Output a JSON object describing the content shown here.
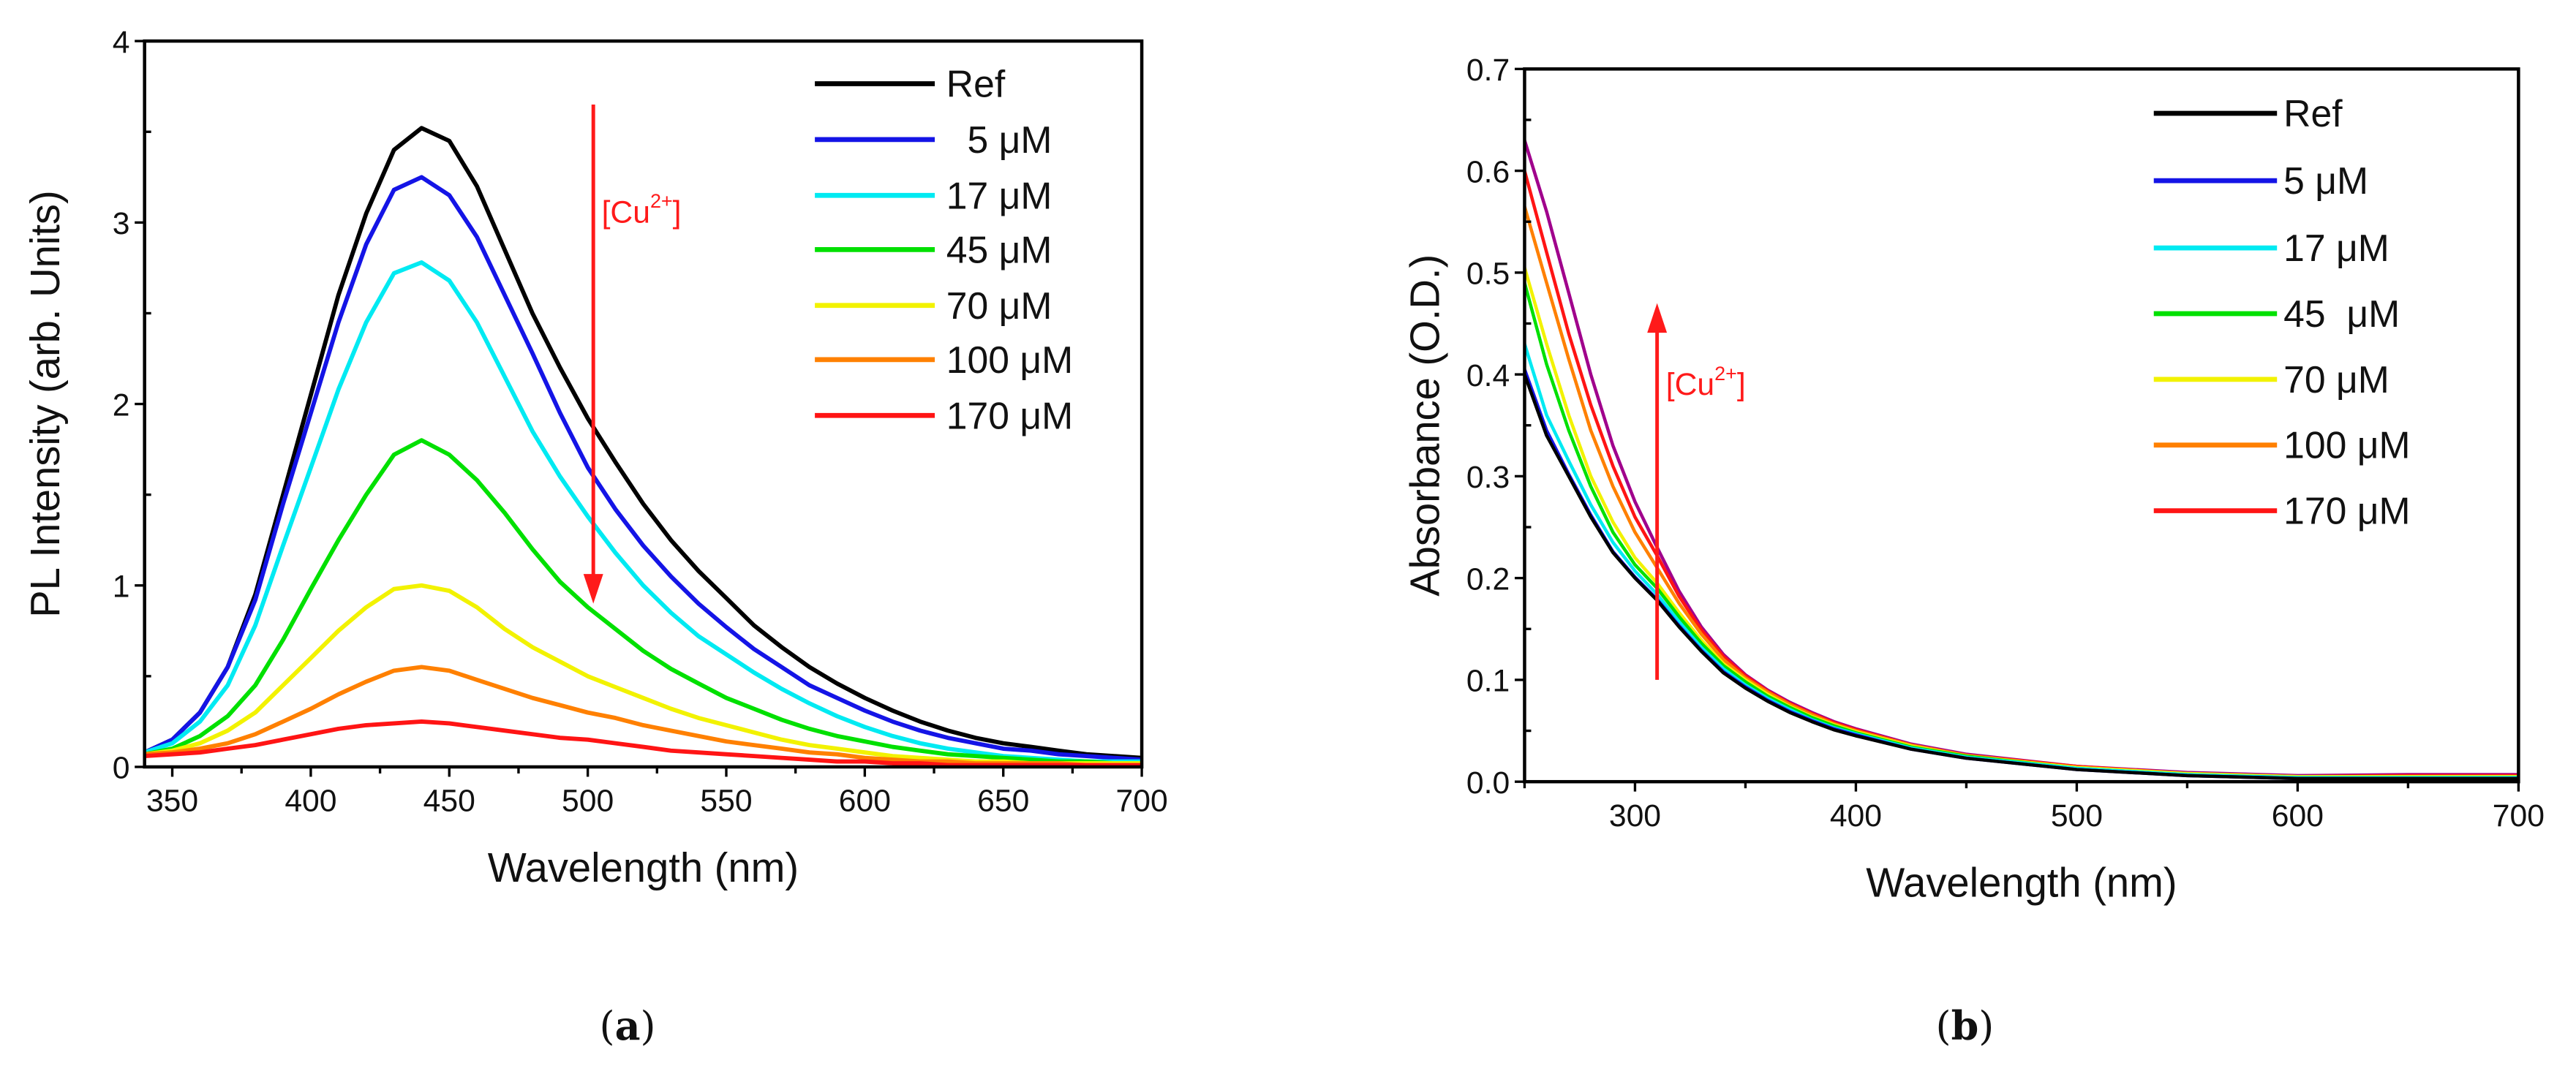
{
  "chart_data": [
    {
      "type": "line",
      "panel_label": "a",
      "xlabel": "Wavelength (nm)",
      "ylabel": "PL Intensity (arb. Units)",
      "xlim": [
        340,
        700
      ],
      "ylim": [
        0,
        4
      ],
      "xticks": [
        350,
        400,
        450,
        500,
        550,
        600,
        650,
        700
      ],
      "yticks": [
        0,
        1,
        2,
        3,
        4
      ],
      "xminor": 25,
      "yminor": 0.5,
      "grid": false,
      "legend_position": "top-right",
      "annotation": {
        "text": "[Cu",
        "sup": "2+",
        "close": "]",
        "arrow_direction": "down",
        "arrow_x": 502,
        "arrow_from": 3.65,
        "arrow_to": 0.9,
        "label_x": 505,
        "label_y": 3.0,
        "color": "#ff1a1a"
      },
      "x": [
        340,
        350,
        360,
        370,
        380,
        390,
        400,
        410,
        420,
        430,
        440,
        450,
        460,
        470,
        480,
        490,
        500,
        510,
        520,
        530,
        540,
        550,
        560,
        570,
        580,
        590,
        600,
        610,
        620,
        630,
        640,
        650,
        660,
        670,
        680,
        690,
        700
      ],
      "series": [
        {
          "name": "Ref",
          "color": "#000000",
          "values": [
            0.08,
            0.15,
            0.3,
            0.55,
            0.95,
            1.5,
            2.05,
            2.6,
            3.05,
            3.4,
            3.52,
            3.45,
            3.2,
            2.85,
            2.5,
            2.2,
            1.92,
            1.68,
            1.45,
            1.25,
            1.08,
            0.93,
            0.78,
            0.66,
            0.55,
            0.46,
            0.38,
            0.31,
            0.25,
            0.2,
            0.16,
            0.13,
            0.11,
            0.09,
            0.07,
            0.06,
            0.05
          ]
        },
        {
          "name": "  5 μM",
          "color": "#1414e6",
          "values": [
            0.08,
            0.15,
            0.3,
            0.55,
            0.92,
            1.45,
            1.95,
            2.45,
            2.88,
            3.18,
            3.25,
            3.15,
            2.92,
            2.6,
            2.28,
            1.95,
            1.65,
            1.42,
            1.22,
            1.05,
            0.9,
            0.77,
            0.65,
            0.55,
            0.45,
            0.38,
            0.31,
            0.25,
            0.2,
            0.16,
            0.13,
            0.1,
            0.09,
            0.07,
            0.06,
            0.05,
            0.04
          ]
        },
        {
          "name": "17 μM",
          "color": "#00eaf2",
          "values": [
            0.08,
            0.13,
            0.25,
            0.45,
            0.78,
            1.22,
            1.65,
            2.08,
            2.45,
            2.72,
            2.78,
            2.68,
            2.45,
            2.15,
            1.85,
            1.6,
            1.38,
            1.18,
            1.0,
            0.85,
            0.72,
            0.62,
            0.52,
            0.43,
            0.35,
            0.28,
            0.22,
            0.17,
            0.13,
            0.1,
            0.08,
            0.06,
            0.05,
            0.04,
            0.03,
            0.03,
            0.03
          ]
        },
        {
          "name": "45 μM",
          "color": "#00e000",
          "values": [
            0.07,
            0.1,
            0.17,
            0.28,
            0.45,
            0.7,
            0.98,
            1.25,
            1.5,
            1.72,
            1.8,
            1.72,
            1.58,
            1.4,
            1.2,
            1.02,
            0.88,
            0.76,
            0.64,
            0.54,
            0.46,
            0.38,
            0.32,
            0.26,
            0.21,
            0.17,
            0.14,
            0.11,
            0.09,
            0.07,
            0.06,
            0.05,
            0.04,
            0.03,
            0.03,
            0.02,
            0.02
          ]
        },
        {
          "name": "70 μM",
          "color": "#f2f200",
          "values": [
            0.07,
            0.09,
            0.13,
            0.2,
            0.3,
            0.45,
            0.6,
            0.75,
            0.88,
            0.98,
            1.0,
            0.97,
            0.88,
            0.76,
            0.66,
            0.58,
            0.5,
            0.44,
            0.38,
            0.32,
            0.27,
            0.23,
            0.19,
            0.15,
            0.12,
            0.1,
            0.08,
            0.06,
            0.05,
            0.04,
            0.03,
            0.03,
            0.02,
            0.02,
            0.02,
            0.02,
            0.02
          ]
        },
        {
          "name": "100 μM",
          "color": "#ff8000",
          "values": [
            0.07,
            0.08,
            0.1,
            0.13,
            0.18,
            0.25,
            0.32,
            0.4,
            0.47,
            0.53,
            0.55,
            0.53,
            0.48,
            0.43,
            0.38,
            0.34,
            0.3,
            0.27,
            0.23,
            0.2,
            0.17,
            0.14,
            0.12,
            0.1,
            0.08,
            0.07,
            0.05,
            0.04,
            0.03,
            0.03,
            0.02,
            0.02,
            0.02,
            0.02,
            0.01,
            0.01,
            0.01
          ]
        },
        {
          "name": "170 μM",
          "color": "#ff1414",
          "values": [
            0.06,
            0.07,
            0.08,
            0.1,
            0.12,
            0.15,
            0.18,
            0.21,
            0.23,
            0.24,
            0.25,
            0.24,
            0.22,
            0.2,
            0.18,
            0.16,
            0.15,
            0.13,
            0.11,
            0.09,
            0.08,
            0.07,
            0.06,
            0.05,
            0.04,
            0.03,
            0.03,
            0.02,
            0.02,
            0.01,
            0.01,
            0.01,
            0.01,
            0.01,
            0.01,
            0.01,
            0.01
          ]
        }
      ]
    },
    {
      "type": "line",
      "panel_label": "b",
      "xlabel": "Wavelength (nm)",
      "ylabel": "Absorbance (O.D.)",
      "xlim": [
        250,
        700
      ],
      "ylim": [
        0,
        0.7
      ],
      "xticks": [
        300,
        400,
        500,
        600,
        700
      ],
      "yticks": [
        0.0,
        0.1,
        0.2,
        0.3,
        0.4,
        0.5,
        0.6,
        0.7
      ],
      "xminor": 50,
      "yminor": 0.05,
      "grid": false,
      "legend_position": "top-right",
      "annotation": {
        "text": "[Cu",
        "sup": "2+",
        "close": "]",
        "arrow_direction": "up",
        "arrow_x": 310,
        "arrow_from": 0.1,
        "arrow_to": 0.47,
        "label_x": 314,
        "label_y": 0.38,
        "color": "#ff1a1a"
      },
      "x": [
        250,
        260,
        270,
        280,
        290,
        300,
        310,
        320,
        330,
        340,
        350,
        360,
        370,
        380,
        390,
        400,
        425,
        450,
        500,
        550,
        600,
        650,
        700
      ],
      "series": [
        {
          "name": "",
          "color": "#a0008c",
          "values": [
            0.63,
            0.56,
            0.48,
            0.4,
            0.33,
            0.275,
            0.23,
            0.187,
            0.152,
            0.125,
            0.105,
            0.09,
            0.078,
            0.068,
            0.059,
            0.052,
            0.037,
            0.027,
            0.015,
            0.009,
            0.006,
            0.007,
            0.007
          ]
        },
        {
          "name": "170 μM",
          "color": "#ff1414",
          "values": [
            0.6,
            0.52,
            0.44,
            0.37,
            0.31,
            0.26,
            0.222,
            0.182,
            0.149,
            0.123,
            0.104,
            0.089,
            0.077,
            0.067,
            0.058,
            0.051,
            0.036,
            0.026,
            0.015,
            0.008,
            0.005,
            0.006,
            0.006
          ]
        },
        {
          "name": "100 μM",
          "color": "#ff8000",
          "values": [
            0.565,
            0.49,
            0.415,
            0.345,
            0.29,
            0.245,
            0.21,
            0.175,
            0.145,
            0.12,
            0.102,
            0.088,
            0.076,
            0.066,
            0.057,
            0.05,
            0.036,
            0.026,
            0.014,
            0.008,
            0.005,
            0.005,
            0.005
          ]
        },
        {
          "name": "70 μM",
          "color": "#f2f200",
          "values": [
            0.505,
            0.43,
            0.36,
            0.3,
            0.255,
            0.22,
            0.195,
            0.166,
            0.139,
            0.116,
            0.1,
            0.086,
            0.074,
            0.064,
            0.056,
            0.049,
            0.035,
            0.025,
            0.014,
            0.008,
            0.005,
            0.005,
            0.005
          ]
        },
        {
          "name": "45  μM",
          "color": "#00e000",
          "values": [
            0.49,
            0.41,
            0.345,
            0.29,
            0.245,
            0.213,
            0.19,
            0.162,
            0.136,
            0.114,
            0.098,
            0.084,
            0.073,
            0.063,
            0.055,
            0.048,
            0.034,
            0.025,
            0.013,
            0.007,
            0.004,
            0.004,
            0.004
          ]
        },
        {
          "name": "17 μM",
          "color": "#00eaf2",
          "values": [
            0.43,
            0.36,
            0.315,
            0.272,
            0.235,
            0.207,
            0.184,
            0.157,
            0.132,
            0.111,
            0.095,
            0.082,
            0.071,
            0.061,
            0.053,
            0.047,
            0.033,
            0.024,
            0.013,
            0.007,
            0.004,
            0.004,
            0.004
          ]
        },
        {
          "name": "5 μM",
          "color": "#1414e6",
          "values": [
            0.405,
            0.345,
            0.302,
            0.262,
            0.226,
            0.201,
            0.179,
            0.153,
            0.129,
            0.108,
            0.093,
            0.08,
            0.069,
            0.06,
            0.052,
            0.046,
            0.032,
            0.023,
            0.012,
            0.006,
            0.003,
            0.003,
            0.003
          ]
        },
        {
          "name": "Ref",
          "color": "#000000",
          "values": [
            0.4,
            0.34,
            0.3,
            0.26,
            0.225,
            0.2,
            0.178,
            0.152,
            0.128,
            0.107,
            0.092,
            0.079,
            0.068,
            0.059,
            0.051,
            0.045,
            0.032,
            0.023,
            0.012,
            0.006,
            0.003,
            0.003,
            0.003
          ]
        }
      ],
      "legend_order": [
        "Ref",
        "5 μM",
        "17 μM",
        "45  μM",
        "70 μM",
        "100 μM",
        "170 μM"
      ]
    }
  ],
  "captions": {
    "a": "a",
    "b": "b"
  }
}
